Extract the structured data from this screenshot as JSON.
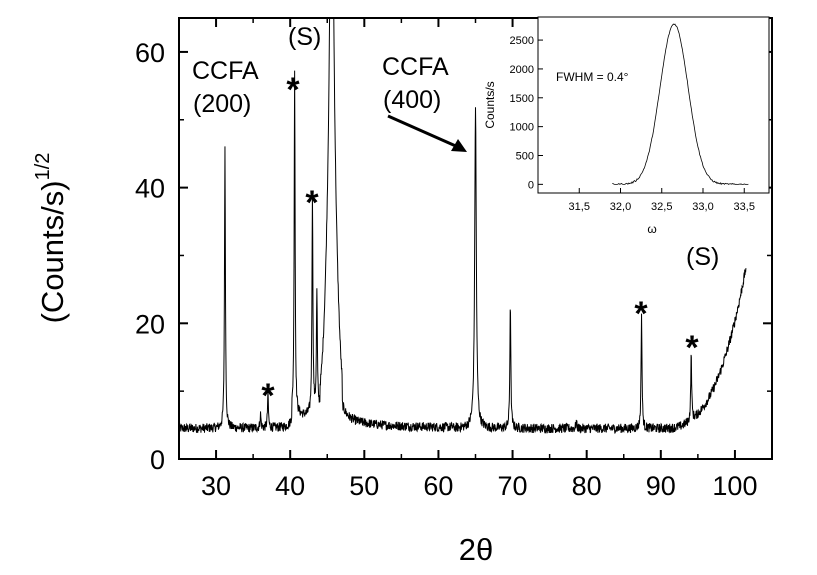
{
  "chart_data": [
    {
      "type": "line",
      "xlabel": "2θ",
      "ylabel": "(Counts/s)",
      "ylabel_superscript": "1/2",
      "xlim": [
        25,
        105
      ],
      "ylim": [
        0,
        65
      ],
      "xticks": [
        "30",
        "40",
        "50",
        "60",
        "70",
        "80",
        "90",
        "100"
      ],
      "yticks": [
        "0",
        "20",
        "40",
        "60"
      ],
      "baseline": 4.5,
      "peaks": [
        {
          "x": 31.2,
          "y": 45.5
        },
        {
          "x": 36.0,
          "y": 6.5
        },
        {
          "x": 37.0,
          "y": 9.5
        },
        {
          "x": 40.6,
          "y": 55.5
        },
        {
          "x": 43.0,
          "y": 37.0
        },
        {
          "x": 43.6,
          "y": 22.0
        },
        {
          "x": 45.6,
          "y": 65.0
        },
        {
          "x": 65.0,
          "y": 52.0
        },
        {
          "x": 69.7,
          "y": 23.3
        },
        {
          "x": 78.6,
          "y": 5.5
        },
        {
          "x": 87.4,
          "y": 21.3
        },
        {
          "x": 94.1,
          "y": 14.3
        }
      ],
      "annotations": {
        "ccfa200_line1": "CCFA",
        "ccfa200_line2": "(200)",
        "ccfa400_line1": "CCFA",
        "ccfa400_line2": "(400)",
        "substrate_left": "(S)",
        "substrate_right": "(S)",
        "impurity_marker": "*"
      }
    },
    {
      "type": "line",
      "inset": true,
      "xlabel": "ω",
      "ylabel": "Counts/s",
      "xlim": [
        31.0,
        33.8
      ],
      "ylim": [
        -150,
        2900
      ],
      "xticks": [
        "31,5",
        "32,0",
        "32,5",
        "33,0",
        "33,5"
      ],
      "yticks": [
        "0",
        "500",
        "1000",
        "1500",
        "2000",
        "2500"
      ],
      "peak_center": 32.65,
      "peak_max": 2780,
      "note": "FWHM = 0.4°"
    }
  ]
}
